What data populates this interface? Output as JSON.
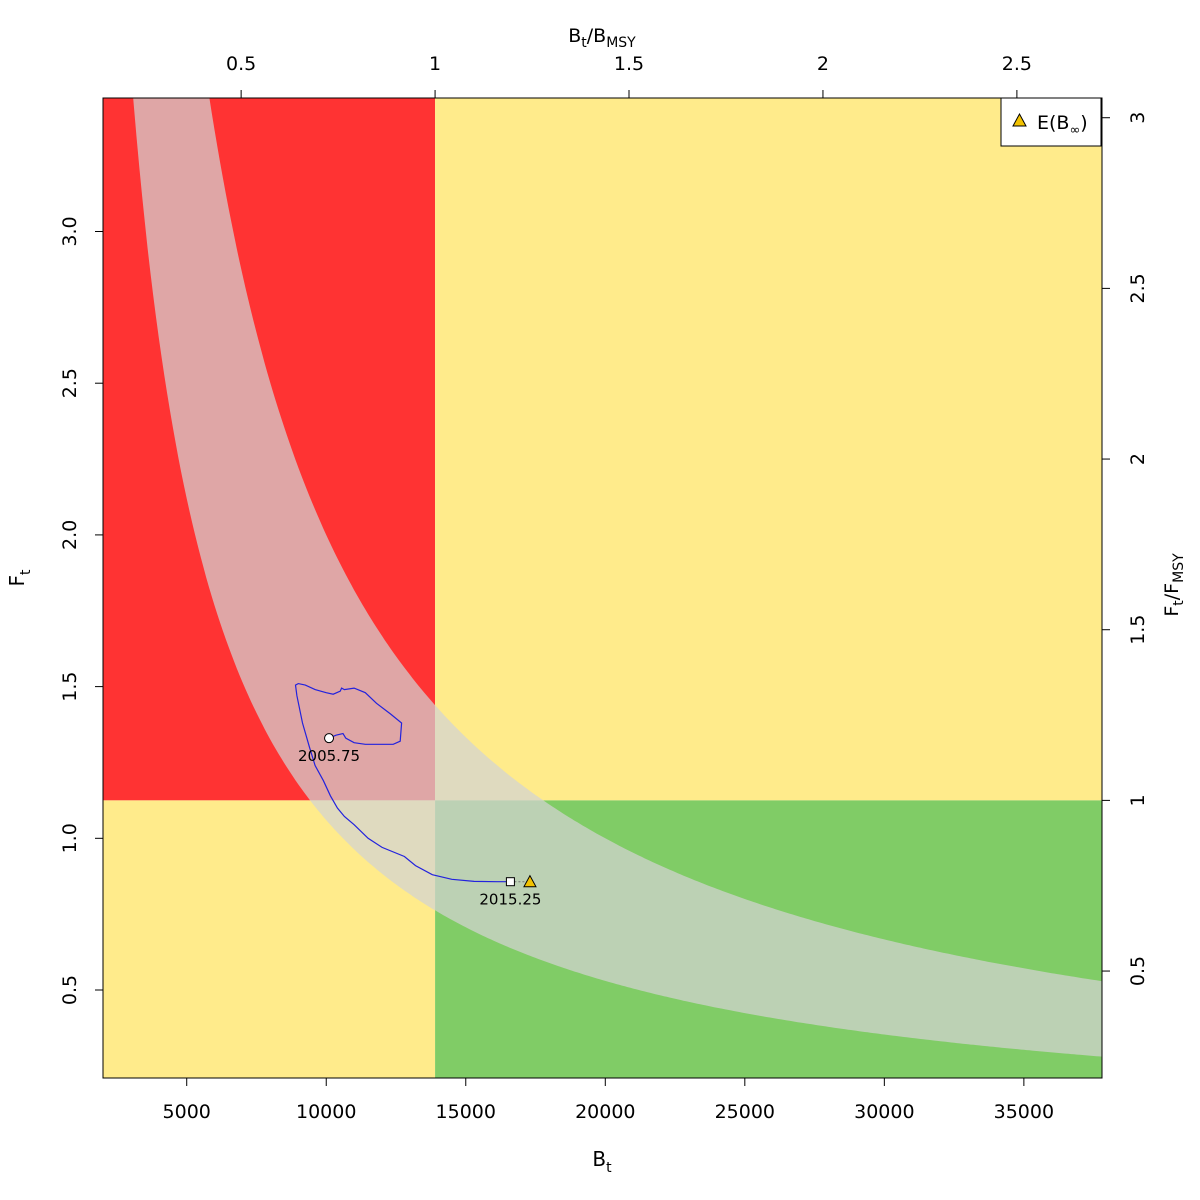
{
  "chart_data": {
    "type": "line",
    "title": "",
    "xlabel": "B",
    "xlabel_sub": "t",
    "ylabel": "F",
    "ylabel_sub": "t",
    "top_xlabel": {
      "main": "B",
      "sub1": "t",
      "sep": "/B",
      "sub2": "MSY"
    },
    "right_ylabel": {
      "main": "F",
      "sub1": "t",
      "sep": "/F",
      "sub2": "MSY"
    },
    "xlim": [
      2000,
      37800
    ],
    "ylim": [
      0.21,
      3.44
    ],
    "x_ticks": [
      5000,
      10000,
      15000,
      20000,
      25000,
      30000,
      35000
    ],
    "x_tick_labels": [
      "5000",
      "10000",
      "15000",
      "20000",
      "25000",
      "30000",
      "35000"
    ],
    "y_ticks": [
      0.5,
      1.0,
      1.5,
      2.0,
      2.5,
      3.0
    ],
    "y_tick_labels": [
      "0.5",
      "1.0",
      "1.5",
      "2.0",
      "2.5",
      "3.0"
    ],
    "top_ticks": [
      0.5,
      1,
      1.5,
      2,
      2.5
    ],
    "top_tick_labels": [
      "0.5",
      "1",
      "1.5",
      "2",
      "2.5"
    ],
    "right_ticks": [
      0.5,
      1,
      1.5,
      2,
      2.5,
      3
    ],
    "right_tick_labels": [
      "0.5",
      "1",
      "1.5",
      "2",
      "2.5",
      "3"
    ],
    "reference": {
      "Bmsy": 13900,
      "Fmsy": 1.125,
      "MSY": 14500
    },
    "msy_band": {
      "lower_msy": 10600,
      "upper_msy": 20000
    },
    "colors": {
      "red_zone": "#ff3333",
      "yellow_zone": "#ffeb8b",
      "green_zone": "#80cc66",
      "band": "#d3d3d3",
      "trajectory": "#2222dd",
      "marker_fill": "#ffffff",
      "triangle_fill": "#f2c200"
    },
    "series": [
      {
        "kind": "trajectory",
        "points": [
          [
            10100,
            1.33
          ],
          [
            10350,
            1.34
          ],
          [
            10600,
            1.345
          ],
          [
            10700,
            1.33
          ],
          [
            11000,
            1.315
          ],
          [
            11400,
            1.31
          ],
          [
            11900,
            1.31
          ],
          [
            12400,
            1.31
          ],
          [
            12650,
            1.32
          ],
          [
            12700,
            1.38
          ],
          [
            12300,
            1.41
          ],
          [
            11800,
            1.445
          ],
          [
            11400,
            1.48
          ],
          [
            11000,
            1.495
          ],
          [
            10650,
            1.49
          ],
          [
            10550,
            1.495
          ],
          [
            10500,
            1.485
          ],
          [
            10250,
            1.475
          ],
          [
            10000,
            1.48
          ],
          [
            9600,
            1.49
          ],
          [
            9250,
            1.505
          ],
          [
            9000,
            1.51
          ],
          [
            8900,
            1.505
          ],
          [
            8950,
            1.47
          ],
          [
            9150,
            1.38
          ],
          [
            9400,
            1.3
          ],
          [
            9600,
            1.24
          ],
          [
            9900,
            1.19
          ],
          [
            10150,
            1.14
          ],
          [
            10400,
            1.1
          ],
          [
            10650,
            1.072
          ],
          [
            11000,
            1.045
          ],
          [
            11500,
            1.0
          ],
          [
            12000,
            0.97
          ],
          [
            12800,
            0.94
          ],
          [
            13200,
            0.91
          ],
          [
            13800,
            0.88
          ],
          [
            14500,
            0.865
          ],
          [
            15300,
            0.858
          ],
          [
            16100,
            0.857
          ],
          [
            16500,
            0.857
          ]
        ]
      }
    ],
    "start_point": {
      "x": 10100,
      "y": 1.33,
      "label": "2005.75"
    },
    "end_point": {
      "x": 16600,
      "y": 0.857,
      "label": "2015.25"
    },
    "expected_point": {
      "x": 17300,
      "y": 0.857
    },
    "legend": {
      "position": "top-right",
      "label": "E(B",
      "sub": "∞",
      "close": ")"
    }
  }
}
